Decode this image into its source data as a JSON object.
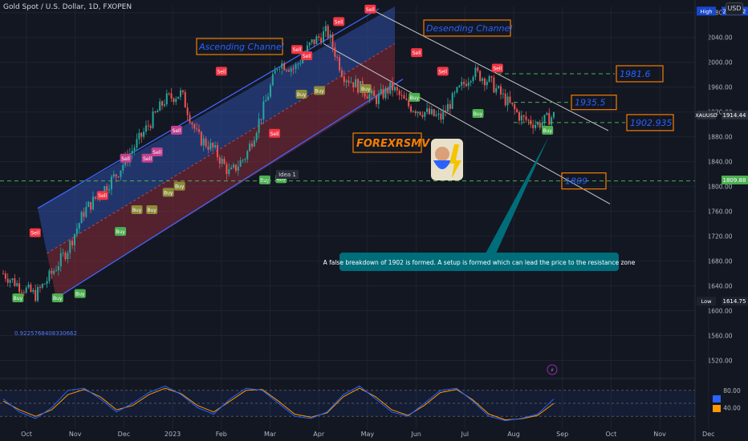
{
  "header": {
    "symbol_title": "Gold Spot / U.S. Dollar, 1D, FXOPEN",
    "currency": "USD"
  },
  "colors": {
    "background": "#131722",
    "grid": "#1f2330",
    "up": "#26a69a",
    "down": "#ef5350",
    "channel_upper": "#2f4ea8",
    "channel_lower": "#8b2a3a",
    "channel_border": "#3d66ff",
    "dashed_level": "#4caf50",
    "label_border": "#f57c00",
    "label_text": "#2962ff",
    "callout_bg": "#006d7a",
    "sell_badge": "#f23645",
    "buy_badge": "#4caf50",
    "buy_badge_olive": "#8d8a3a",
    "oscillator_k": "#2962ff",
    "oscillator_d": "#ff9800"
  },
  "chart_data": {
    "type": "line",
    "title": "Gold Spot / U.S. Dollar, 1D, FXOPEN",
    "x_ticks": [
      "Oct",
      "Nov",
      "Dec",
      "2023",
      "Feb",
      "Mar",
      "Apr",
      "May",
      "Jun",
      "Jul",
      "Aug",
      "Sep",
      "Oct",
      "Nov",
      "Dec"
    ],
    "y_ticks": [
      "1520.00",
      "1560.00",
      "1600.00",
      "1640.00",
      "1680.00",
      "1720.00",
      "1760.00",
      "1800.00",
      "1840.00",
      "1880.00",
      "1920.00",
      "1960.00",
      "2000.00",
      "2040.00",
      "2080.00"
    ],
    "ylim": [
      1500,
      2090
    ],
    "price_tags": [
      {
        "label": "High",
        "value": "2081.82"
      },
      {
        "label": "XAUUSD",
        "value": "1914.44"
      },
      {
        "label": "",
        "value": "1809.88"
      },
      {
        "label": "Low",
        "value": "1614.75"
      }
    ],
    "series": {
      "months": [
        "Oct",
        "Nov",
        "Dec",
        "2023",
        "Feb",
        "Mar",
        "Apr",
        "May",
        "Jun",
        "Jul",
        "Aug"
      ],
      "price_path": [
        1660,
        1640,
        1625,
        1660,
        1700,
        1760,
        1790,
        1820,
        1860,
        1900,
        1940,
        1950,
        1880,
        1860,
        1820,
        1850,
        1920,
        2000,
        1990,
        2030,
        2050,
        1980,
        1960,
        1940,
        1960,
        1930,
        1920,
        1910,
        1950,
        1985,
        1970,
        1940,
        1910,
        1900,
        1914
      ]
    },
    "levels": [
      {
        "text": "1981.6",
        "value": 1981.6
      },
      {
        "text": "1935.5",
        "value": 1935.5
      },
      {
        "text": "1902.935",
        "value": 1902.935
      },
      {
        "text": "1809",
        "value": 1809
      }
    ],
    "annotations": {
      "ascending_channel": "Ascending Channel",
      "descending_channel": "Desending Channel",
      "brand": "FOREXRSMV",
      "idea": "Idea 1",
      "fib_value": "0.9225768408330662",
      "callout": "A false breakdown of 1902 is formed.  A  setup is formed which can lead the price to the resistance zone"
    },
    "signals": [
      {
        "text": "Sell",
        "x": 0.047,
        "y": 1725
      },
      {
        "text": "Sell",
        "x": 0.137,
        "y": 1785
      },
      {
        "text": "Sell",
        "x": 0.168,
        "y": 1845
      },
      {
        "text": "Sell",
        "x": 0.197,
        "y": 1845
      },
      {
        "text": "Sell",
        "x": 0.21,
        "y": 1855
      },
      {
        "text": "Sell",
        "x": 0.236,
        "y": 1890
      },
      {
        "text": "Sell",
        "x": 0.296,
        "y": 1985
      },
      {
        "text": "Sell",
        "x": 0.367,
        "y": 1885
      },
      {
        "text": "Sell",
        "x": 0.397,
        "y": 2020
      },
      {
        "text": "Sell",
        "x": 0.41,
        "y": 2010
      },
      {
        "text": "Sell",
        "x": 0.453,
        "y": 2065
      },
      {
        "text": "Sell",
        "x": 0.495,
        "y": 2085
      },
      {
        "text": "Sell",
        "x": 0.557,
        "y": 2015
      },
      {
        "text": "Sell",
        "x": 0.592,
        "y": 1985
      },
      {
        "text": "Sell",
        "x": 0.665,
        "y": 1990
      },
      {
        "text": "Buy",
        "x": 0.024,
        "y": 1620
      },
      {
        "text": "Buy",
        "x": 0.077,
        "y": 1620
      },
      {
        "text": "Buy",
        "x": 0.107,
        "y": 1627
      },
      {
        "text": "Buy",
        "x": 0.161,
        "y": 1727
      },
      {
        "text": "Buy",
        "x": 0.183,
        "y": 1762
      },
      {
        "text": "Buy",
        "x": 0.203,
        "y": 1762
      },
      {
        "text": "Buy",
        "x": 0.225,
        "y": 1790
      },
      {
        "text": "Buy",
        "x": 0.24,
        "y": 1800
      },
      {
        "text": "Buy",
        "x": 0.354,
        "y": 1810
      },
      {
        "text": "Buy",
        "x": 0.376,
        "y": 1812
      },
      {
        "text": "Buy",
        "x": 0.403,
        "y": 1948
      },
      {
        "text": "Buy",
        "x": 0.427,
        "y": 1954
      },
      {
        "text": "Buy",
        "x": 0.489,
        "y": 1957
      },
      {
        "text": "Buy",
        "x": 0.554,
        "y": 1943
      },
      {
        "text": "Buy",
        "x": 0.639,
        "y": 1917
      },
      {
        "text": "Buy",
        "x": 0.732,
        "y": 1890
      }
    ],
    "oscillator": {
      "ticks": [
        "80.00",
        "40.00"
      ],
      "k_value": "",
      "d_value": "",
      "k_path": [
        60,
        30,
        15,
        40,
        80,
        85,
        60,
        30,
        50,
        75,
        90,
        70,
        40,
        25,
        60,
        85,
        80,
        50,
        20,
        15,
        30,
        70,
        90,
        60,
        30,
        20,
        50,
        80,
        85,
        55,
        20,
        10,
        15,
        25,
        60
      ],
      "d_path": [
        55,
        35,
        20,
        35,
        70,
        82,
        65,
        35,
        45,
        70,
        85,
        72,
        45,
        30,
        55,
        80,
        82,
        55,
        25,
        18,
        28,
        65,
        85,
        65,
        35,
        22,
        45,
        75,
        82,
        58,
        25,
        12,
        14,
        22,
        50
      ]
    }
  }
}
